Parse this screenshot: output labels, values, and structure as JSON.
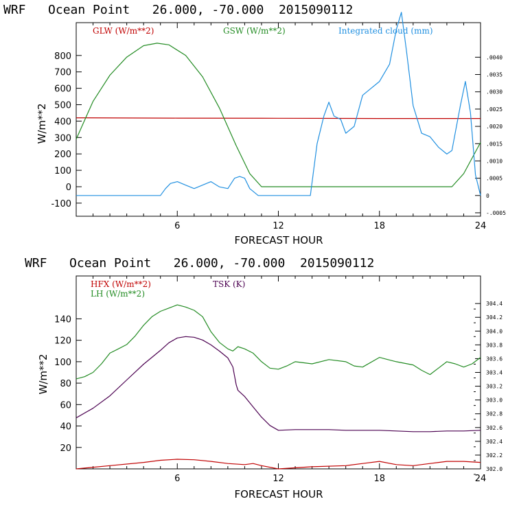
{
  "colors": {
    "red": "#c00000",
    "green": "#228b22",
    "blue": "#1f8fe0",
    "purple": "#4b0050"
  },
  "chart_data": [
    {
      "type": "line",
      "title": "WRF   Ocean Point   26.000, -70.000  2015090112",
      "xlabel": "FORECAST HOUR",
      "ylabel": "W/m**2",
      "xlim": [
        0,
        24
      ],
      "ylim": [
        -180,
        1000
      ],
      "x_ticks": [
        "6",
        "12",
        "18",
        "24"
      ],
      "y_ticks": [
        "800",
        "700",
        "600",
        "500",
        "400",
        "300",
        "200",
        "100",
        "0",
        "-100"
      ],
      "right_ylim": [
        -0.0006,
        0.005
      ],
      "right_ticks": [
        ".0040",
        ".0035",
        ".0030",
        ".0025",
        ".0020",
        ".0015",
        ".0010",
        ".0005",
        "0",
        "-.0005"
      ],
      "series": [
        {
          "name": "GLW (W/m**2)",
          "axis": "left",
          "color": "red",
          "x": [
            0,
            6,
            12,
            18,
            24
          ],
          "y": [
            420,
            418,
            417,
            416,
            416
          ]
        },
        {
          "name": "GSW (W/m**2)",
          "axis": "left",
          "color": "green",
          "x": [
            0,
            1,
            2,
            3,
            4,
            4.8,
            5.5,
            6.5,
            7.5,
            8.5,
            9.5,
            10.3,
            11,
            12,
            14,
            16,
            18,
            20,
            22,
            22.3,
            23,
            24
          ],
          "y": [
            290,
            520,
            680,
            790,
            860,
            875,
            865,
            800,
            670,
            480,
            250,
            80,
            0,
            0,
            0,
            0,
            0,
            0,
            0,
            0,
            80,
            270
          ]
        },
        {
          "name": "Integrated cloud (mm)",
          "axis": "right",
          "color": "blue",
          "x": [
            0,
            5,
            5.3,
            5.6,
            6,
            6.5,
            7,
            8,
            8.5,
            9,
            9.4,
            9.7,
            10,
            10.3,
            10.8,
            11,
            12,
            13,
            13.9,
            14.3,
            14.7,
            15,
            15.3,
            15.7,
            16,
            16.5,
            17,
            17.5,
            18,
            18.6,
            19,
            19.3,
            19.6,
            20,
            20.5,
            21,
            21.5,
            22,
            22.3,
            22.8,
            23.1,
            23.4,
            23.7,
            24
          ],
          "y": [
            0,
            0,
            0.0002,
            0.00035,
            0.0004,
            0.0003,
            0.0002,
            0.0004,
            0.00025,
            0.0002,
            0.0005,
            0.00055,
            0.0005,
            0.0002,
            0,
            0,
            0,
            0,
            0,
            0.0015,
            0.0023,
            0.0027,
            0.0023,
            0.0022,
            0.0018,
            0.002,
            0.0029,
            0.0031,
            0.0033,
            0.0038,
            0.0048,
            0.0053,
            0.0042,
            0.0026,
            0.0018,
            0.0017,
            0.0014,
            0.0012,
            0.0013,
            0.0026,
            0.0033,
            0.0024,
            0.0006,
            0
          ]
        }
      ]
    },
    {
      "type": "line",
      "title": "WRF   Ocean Point   26.000, -70.000  2015090112",
      "xlabel": "FORECAST HOUR",
      "ylabel": "W/m**2",
      "xlim": [
        0,
        24
      ],
      "ylim": [
        0,
        180
      ],
      "x_ticks": [
        "6",
        "12",
        "18",
        "24"
      ],
      "y_ticks": [
        "140",
        "120",
        "100",
        "80",
        "60",
        "40",
        "20"
      ],
      "right_ylim": [
        302.0,
        304.8
      ],
      "right_ticks": [
        "304.4",
        "304.2",
        "304.0",
        "303.8",
        "303.6",
        "303.4",
        "303.2",
        "303.0",
        "302.8",
        "302.6",
        "302.4",
        "302.2",
        "302.0"
      ],
      "series": [
        {
          "name": "HFX (W/m**2)",
          "axis": "left",
          "color": "red",
          "x": [
            0,
            2,
            4,
            5,
            6,
            7,
            8,
            9,
            10,
            10.5,
            11,
            12,
            14,
            16,
            17,
            18,
            19,
            20,
            21,
            22,
            23,
            24
          ],
          "y": [
            0,
            3,
            6,
            8,
            9,
            8.5,
            7,
            5,
            4,
            5,
            3,
            0,
            2,
            3,
            5,
            7,
            4,
            3,
            5,
            7,
            7,
            6
          ]
        },
        {
          "name": "LH (W/m**2)",
          "axis": "left",
          "color": "green",
          "x": [
            0,
            0.5,
            1,
            1.5,
            2,
            2.5,
            3,
            3.5,
            4,
            4.5,
            5,
            5.5,
            6,
            6.5,
            7,
            7.5,
            8,
            8.5,
            9,
            9.3,
            9.6,
            10,
            10.5,
            11,
            11.5,
            12,
            12.5,
            13,
            14,
            15,
            16,
            16.5,
            17,
            18,
            18.5,
            19,
            20,
            20.5,
            21,
            21.5,
            22,
            22.5,
            23,
            23.5,
            24
          ],
          "y": [
            84,
            86,
            90,
            98,
            108,
            112,
            116,
            124,
            134,
            142,
            147,
            150,
            153,
            151,
            148,
            142,
            128,
            118,
            112,
            110,
            114,
            112,
            108,
            100,
            94,
            93,
            96,
            100,
            98,
            102,
            100,
            96,
            95,
            104,
            102,
            100,
            97,
            92,
            88,
            94,
            100,
            98,
            95,
            98,
            104
          ]
        },
        {
          "name": "TSK (K)",
          "axis": "right",
          "color": "purple",
          "x": [
            0,
            1,
            2,
            3,
            4,
            5,
            5.5,
            6,
            6.5,
            7,
            7.5,
            8,
            8.5,
            9,
            9.3,
            9.5,
            9.6,
            10,
            10.5,
            11,
            11.5,
            12,
            13,
            14,
            15,
            16,
            17,
            18,
            19,
            20,
            21,
            22,
            23,
            24
          ],
          "y": [
            302.74,
            302.88,
            303.06,
            303.29,
            303.52,
            303.72,
            303.83,
            303.9,
            303.92,
            303.91,
            303.87,
            303.8,
            303.71,
            303.61,
            303.48,
            303.22,
            303.14,
            303.05,
            302.9,
            302.75,
            302.63,
            302.56,
            302.57,
            302.57,
            302.57,
            302.56,
            302.56,
            302.56,
            302.55,
            302.54,
            302.54,
            302.55,
            302.55,
            302.56
          ]
        }
      ]
    }
  ]
}
